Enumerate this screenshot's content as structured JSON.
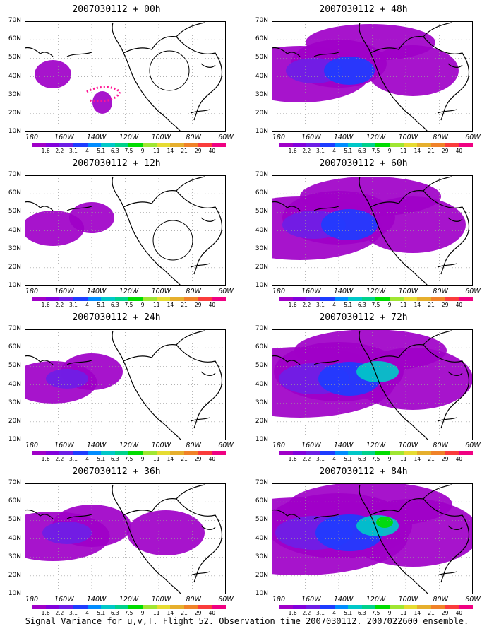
{
  "panels": [
    {
      "title": "2007030112 + 00h",
      "level": 0,
      "circle": [
        240,
        100
      ],
      "dots": true
    },
    {
      "title": "2007030112 + 48h",
      "level": 4
    },
    {
      "title": "2007030112 + 12h",
      "level": 1,
      "circle": [
        245,
        340
      ]
    },
    {
      "title": "2007030112 + 60h",
      "level": 5
    },
    {
      "title": "2007030112 + 24h",
      "level": 2
    },
    {
      "title": "2007030112 + 72h",
      "level": 6
    },
    {
      "title": "2007030112 + 36h",
      "level": 3
    },
    {
      "title": "2007030112 + 84h",
      "level": 7
    }
  ],
  "lat_labels": [
    "70N",
    "60N",
    "50N",
    "40N",
    "30N",
    "20N",
    "10N"
  ],
  "lon_labels": [
    "180",
    "160W",
    "140W",
    "120W",
    "100W",
    "80W",
    "60W"
  ],
  "colorbar": {
    "labels": [
      "1.6",
      "2.2",
      "3.1",
      "4",
      "5.1",
      "6.3",
      "7.5",
      "9",
      "11",
      "14",
      "21",
      "29",
      "40"
    ],
    "colors": [
      "#a000c8",
      "#8200dc",
      "#6e1ee6",
      "#1e3cff",
      "#008cff",
      "#00c8c8",
      "#00d28c",
      "#00dc00",
      "#a0e632",
      "#e6dc32",
      "#e6af2d",
      "#f08228",
      "#fa3c3c",
      "#f00082"
    ]
  },
  "footer": "Signal Variance for u,v,T. Flight 52. Observation time 2007030112. 2007022600 ensemble."
}
